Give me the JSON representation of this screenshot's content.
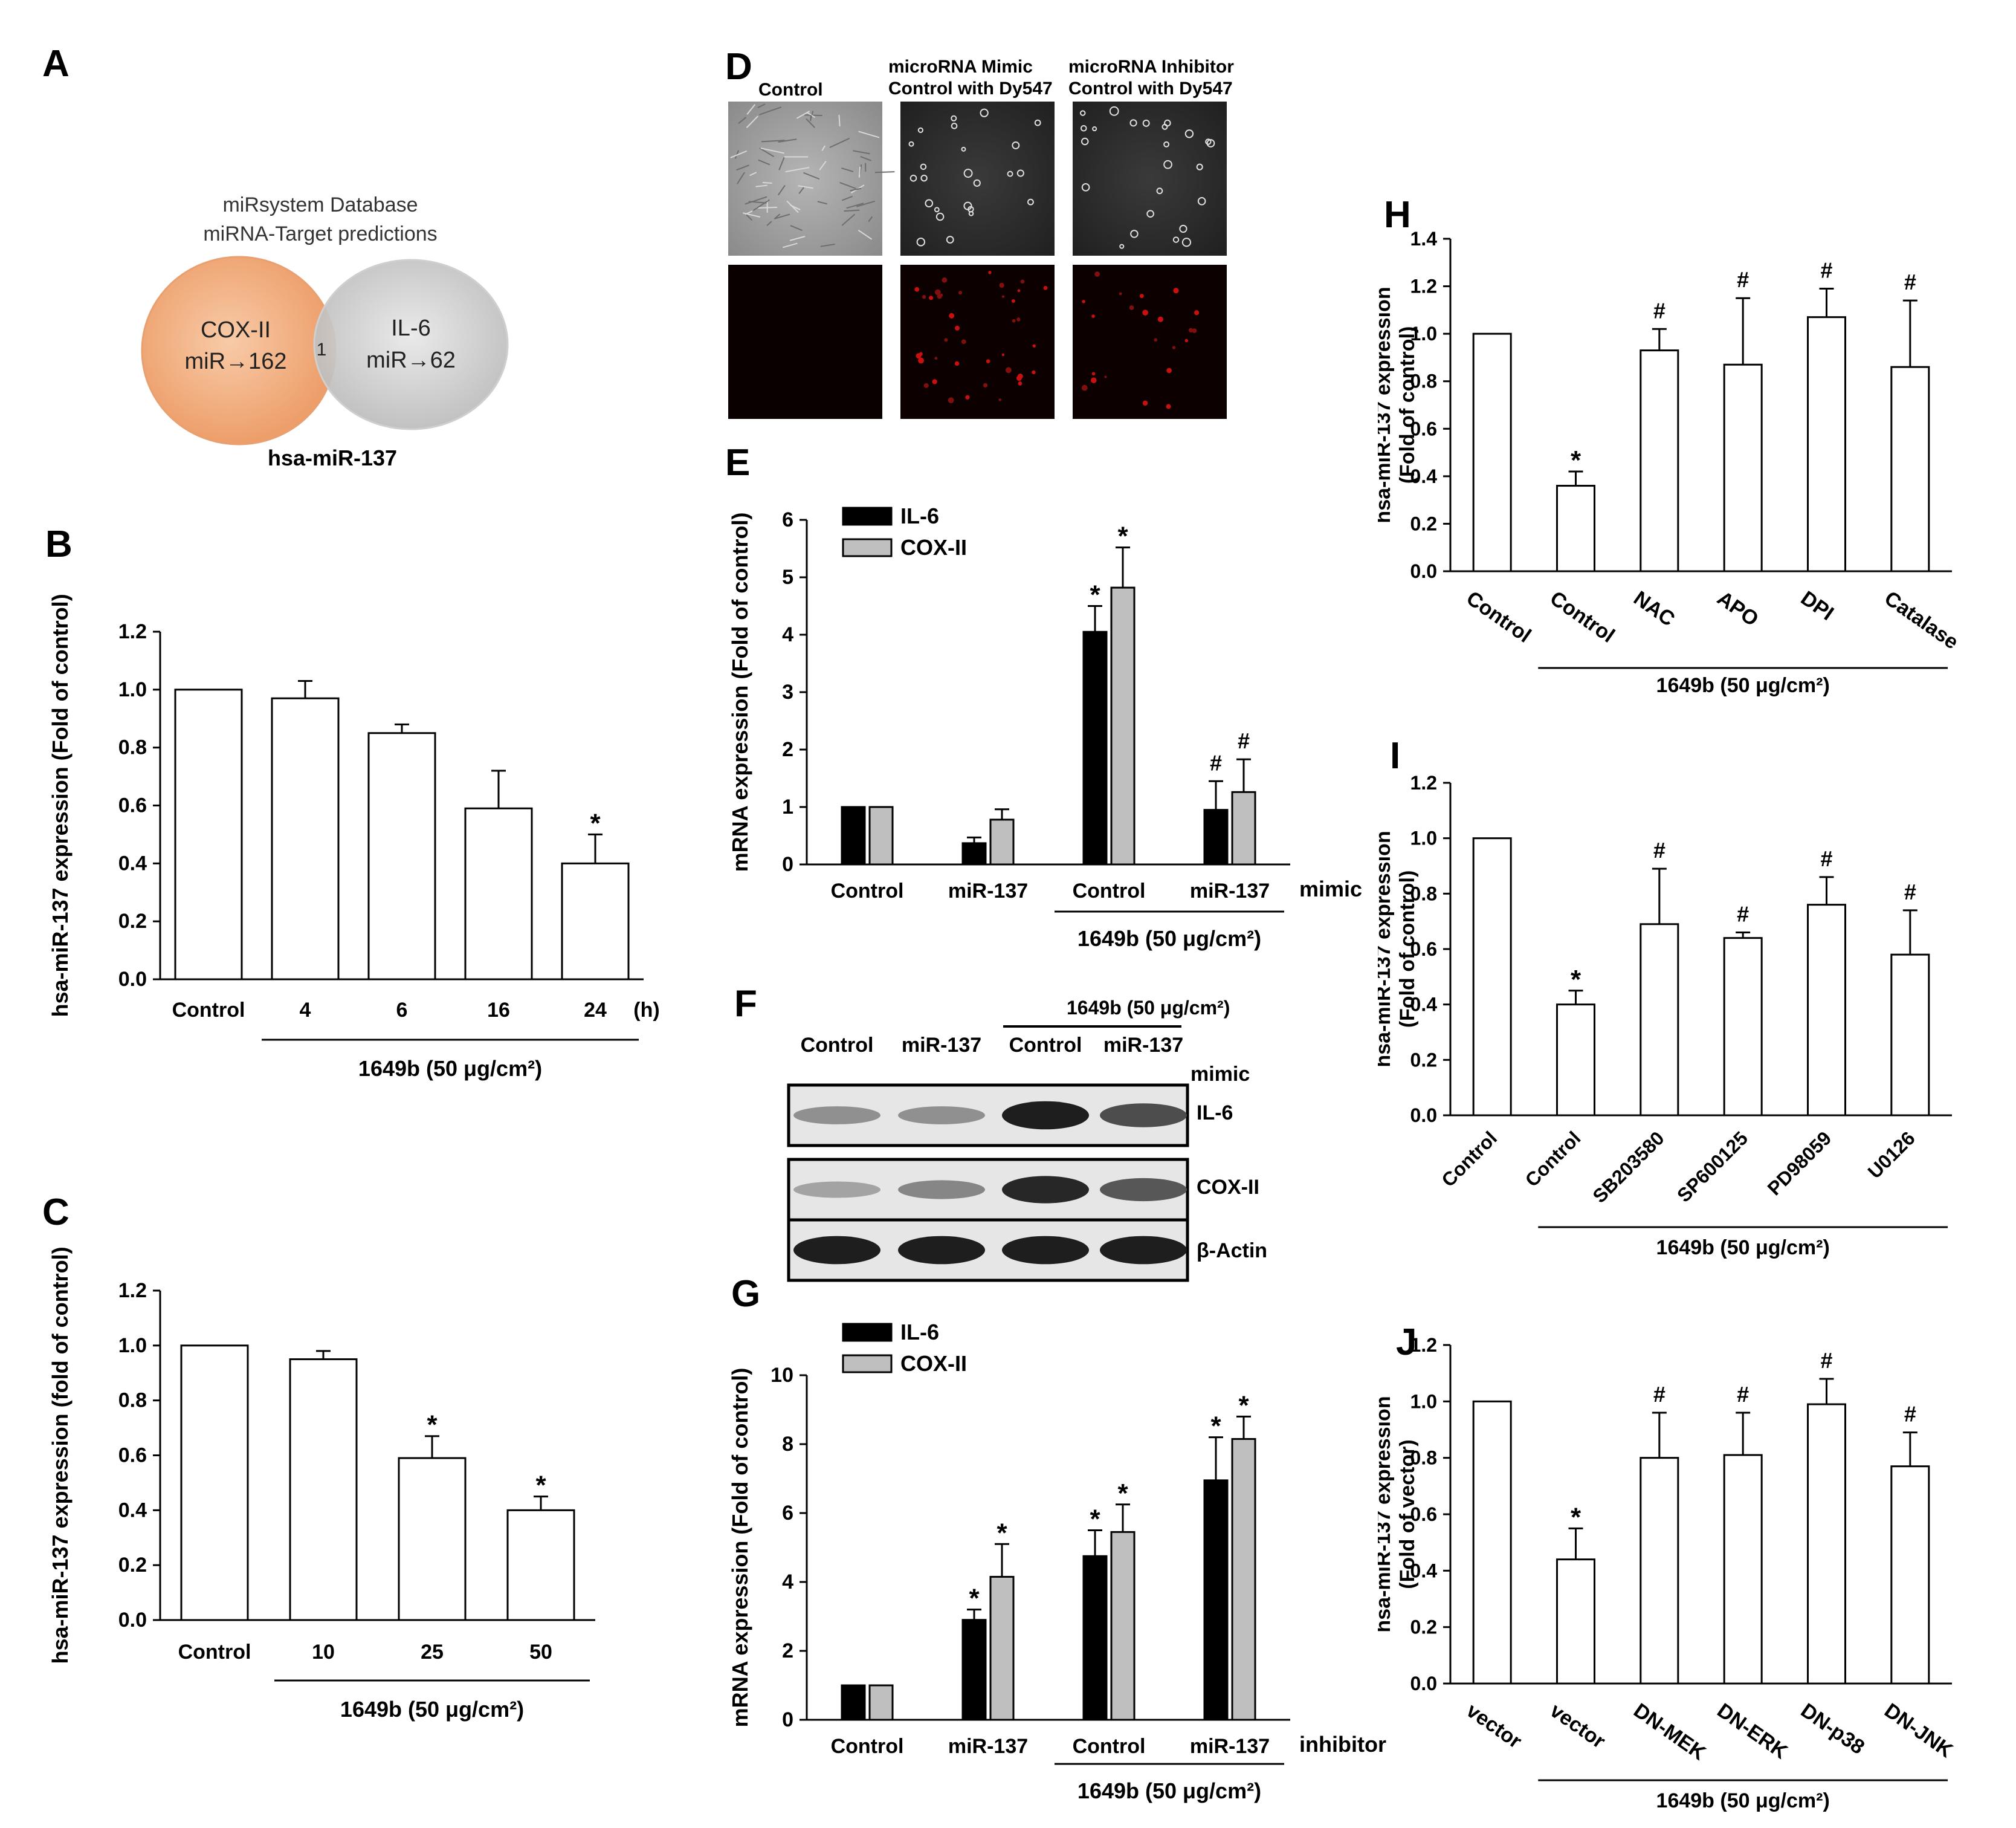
{
  "panel_letters": [
    "A",
    "B",
    "C",
    "D",
    "E",
    "F",
    "G",
    "H",
    "I",
    "J"
  ],
  "colors": {
    "ink": "#000000",
    "bar_open": "#ffffff",
    "il6": "#000000",
    "cox": "#bfbfbf",
    "venn_left": "#f4b183",
    "venn_right": "#d0d0d0"
  },
  "panel_a": {
    "database": "miRsystem Database",
    "predictions": "miRNA-Target predictions",
    "left_title": "COX-II",
    "left_count": "miR→162",
    "right_title": "IL-6",
    "right_count": "miR→62",
    "overlap": "1",
    "mirna": "hsa-miR-137"
  },
  "panel_d": {
    "col_labels": [
      "Control",
      "microRNA Mimic\nControl with Dy547",
      "microRNA Inhibitor\nControl with Dy547"
    ]
  },
  "panel_f": {
    "treatment_header": "1649b (50 μg/cm²)",
    "lanes": [
      "Control",
      "miR-137",
      "Control",
      "miR-137"
    ],
    "mimic": "mimic",
    "rows": [
      "IL-6",
      "COX-II",
      "β-Actin"
    ]
  },
  "chart_data": [
    {
      "id": "B",
      "type": "bar",
      "ylabel": "hsa-miR-137 expression (Fold of control)",
      "ylim": [
        0,
        1.2
      ],
      "yticks": [
        0.0,
        0.2,
        0.4,
        0.6,
        0.8,
        1.0,
        1.2
      ],
      "categories": [
        "Control",
        "4",
        "6",
        "16",
        "24"
      ],
      "unit_suffix": "(h)",
      "series": [
        {
          "name": "hsa-miR-137",
          "values": [
            1.0,
            0.97,
            0.85,
            0.59,
            0.4
          ],
          "errors": [
            0,
            0.06,
            0.03,
            0.13,
            0.1
          ]
        }
      ],
      "stars": [
        "",
        "",
        "",
        "",
        "*"
      ],
      "group_label": "1649b (50 μg/cm²)"
    },
    {
      "id": "C",
      "type": "bar",
      "ylabel": "hsa-miR-137 expression (fold of control)",
      "ylim": [
        0,
        1.2
      ],
      "yticks": [
        0.0,
        0.2,
        0.4,
        0.6,
        0.8,
        1.0,
        1.2
      ],
      "categories": [
        "Control",
        "10",
        "25",
        "50"
      ],
      "series": [
        {
          "name": "hsa-miR-137",
          "values": [
            1.0,
            0.95,
            0.59,
            0.4
          ],
          "errors": [
            0,
            0.03,
            0.08,
            0.05
          ]
        }
      ],
      "stars": [
        "",
        "",
        "*",
        "*"
      ],
      "group_label": "1649b (50 μg/cm²)"
    },
    {
      "id": "E",
      "type": "bar",
      "ylabel": "mRNA expression (Fold of control)",
      "ylim": [
        0,
        6
      ],
      "yticks": [
        0,
        1,
        2,
        3,
        4,
        5,
        6
      ],
      "categories": [
        "Control",
        "miR-137",
        "Control",
        "miR-137"
      ],
      "suffix_label": "mimic",
      "series": [
        {
          "name": "IL-6",
          "values": [
            1.0,
            0.37,
            4.05,
            0.95
          ],
          "errors": [
            0,
            0.1,
            0.45,
            0.5
          ]
        },
        {
          "name": "COX-II",
          "values": [
            1.0,
            0.78,
            4.82,
            1.26
          ],
          "errors": [
            0,
            0.18,
            0.7,
            0.57
          ]
        }
      ],
      "marks": [
        [
          "",
          "",
          "*",
          "#"
        ],
        [
          "",
          "",
          "*",
          "#"
        ]
      ],
      "group_label": "1649b (50 μg/cm²)"
    },
    {
      "id": "G",
      "type": "bar",
      "ylabel": "mRNA expression (Fold of control)",
      "ylim": [
        0,
        10
      ],
      "yticks": [
        0,
        2,
        4,
        6,
        8,
        10
      ],
      "categories": [
        "Control",
        "miR-137",
        "Control",
        "miR-137"
      ],
      "suffix_label": "inhibitor",
      "series": [
        {
          "name": "IL-6",
          "values": [
            1.0,
            2.9,
            4.75,
            6.95
          ],
          "errors": [
            0,
            0.3,
            0.75,
            1.25
          ]
        },
        {
          "name": "COX-II",
          "values": [
            1.0,
            4.15,
            5.45,
            8.15
          ],
          "errors": [
            0,
            0.95,
            0.8,
            0.65
          ]
        }
      ],
      "marks": [
        [
          "",
          "*",
          "*",
          "*"
        ],
        [
          "",
          "*",
          "*",
          "*"
        ]
      ],
      "group_label": "1649b (50 μg/cm²)"
    },
    {
      "id": "H",
      "type": "bar",
      "ylabel": "hsa-miR-137 expression\n(Fold of control)",
      "ylim": [
        0,
        1.4
      ],
      "yticks": [
        0.0,
        0.2,
        0.4,
        0.6,
        0.8,
        1.0,
        1.2,
        1.4
      ],
      "categories": [
        "Control",
        "Control",
        "NAC",
        "APO",
        "DPI",
        "Catalase"
      ],
      "series": [
        {
          "name": "hsa-miR-137",
          "values": [
            1.0,
            0.36,
            0.93,
            0.87,
            1.07,
            0.86
          ],
          "errors": [
            0,
            0.06,
            0.09,
            0.28,
            0.12,
            0.28
          ]
        }
      ],
      "stars": [
        "",
        "*",
        "#",
        "#",
        "#",
        "#"
      ],
      "group_label": "1649b (50 μg/cm²)"
    },
    {
      "id": "I",
      "type": "bar",
      "ylabel": "hsa-miR-137 expression\n(Fold of control)",
      "ylim": [
        0,
        1.2
      ],
      "yticks": [
        0.0,
        0.2,
        0.4,
        0.6,
        0.8,
        1.0,
        1.2
      ],
      "categories": [
        "Control",
        "Control",
        "SB203580",
        "SP600125",
        "PD98059",
        "U0126"
      ],
      "series": [
        {
          "name": "hsa-miR-137",
          "values": [
            1.0,
            0.4,
            0.69,
            0.64,
            0.76,
            0.58
          ],
          "errors": [
            0,
            0.05,
            0.2,
            0.02,
            0.1,
            0.16
          ]
        }
      ],
      "stars": [
        "",
        "*",
        "#",
        "#",
        "#",
        "#"
      ],
      "group_label": "1649b (50 μg/cm²)"
    },
    {
      "id": "J",
      "type": "bar",
      "ylabel": "hsa-miR-137 expression\n(Fold of vector)",
      "ylim": [
        0,
        1.2
      ],
      "yticks": [
        0.0,
        0.2,
        0.4,
        0.6,
        0.8,
        1.0,
        1.2
      ],
      "categories": [
        "vector",
        "vector",
        "DN-MEK",
        "DN-ERK",
        "DN-p38",
        "DN-JNK"
      ],
      "series": [
        {
          "name": "hsa-miR-137",
          "values": [
            1.0,
            0.44,
            0.8,
            0.81,
            0.99,
            0.77
          ],
          "errors": [
            0,
            0.11,
            0.16,
            0.15,
            0.09,
            0.12
          ]
        }
      ],
      "stars": [
        "",
        "*",
        "#",
        "#",
        "#",
        "#"
      ],
      "group_label": "1649b (50 μg/cm²)"
    }
  ]
}
